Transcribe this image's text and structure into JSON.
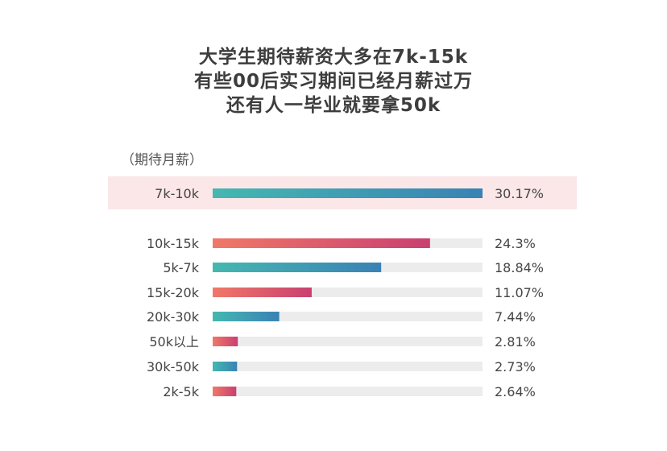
{
  "title_lines": [
    "大学生期待薪资大多在7k-15k",
    "有些00后实习期间已经月薪过万",
    "还有人一毕业就要拿50k"
  ],
  "chart_data": {
    "type": "bar",
    "orientation": "horizontal",
    "unit_label": "（期待月薪）",
    "categories": [
      "7k-10k",
      "10k-15k",
      "5k-7k",
      "15k-20k",
      "20k-30k",
      "50k以上",
      "30k-50k",
      "2k-5k"
    ],
    "values": [
      30.17,
      24.3,
      18.84,
      11.07,
      7.44,
      2.81,
      2.73,
      2.64
    ],
    "value_labels": [
      "30.17%",
      "24.3%",
      "18.84%",
      "11.07%",
      "7.44%",
      "2.81%",
      "2.73%",
      "2.64%"
    ],
    "highlighted_category": "7k-10k",
    "xlim": [
      0,
      30.17
    ],
    "grid": false,
    "colors": {
      "teal_start": "#45b8b0",
      "teal_end": "#3a82b5",
      "coral_start": "#f07868",
      "coral_end": "#c94070",
      "track": "#ececec",
      "highlight_band": "#fbe7e8"
    },
    "bar_color_scheme": [
      "teal",
      "coral",
      "teal",
      "coral",
      "teal",
      "coral",
      "teal",
      "coral"
    ]
  }
}
